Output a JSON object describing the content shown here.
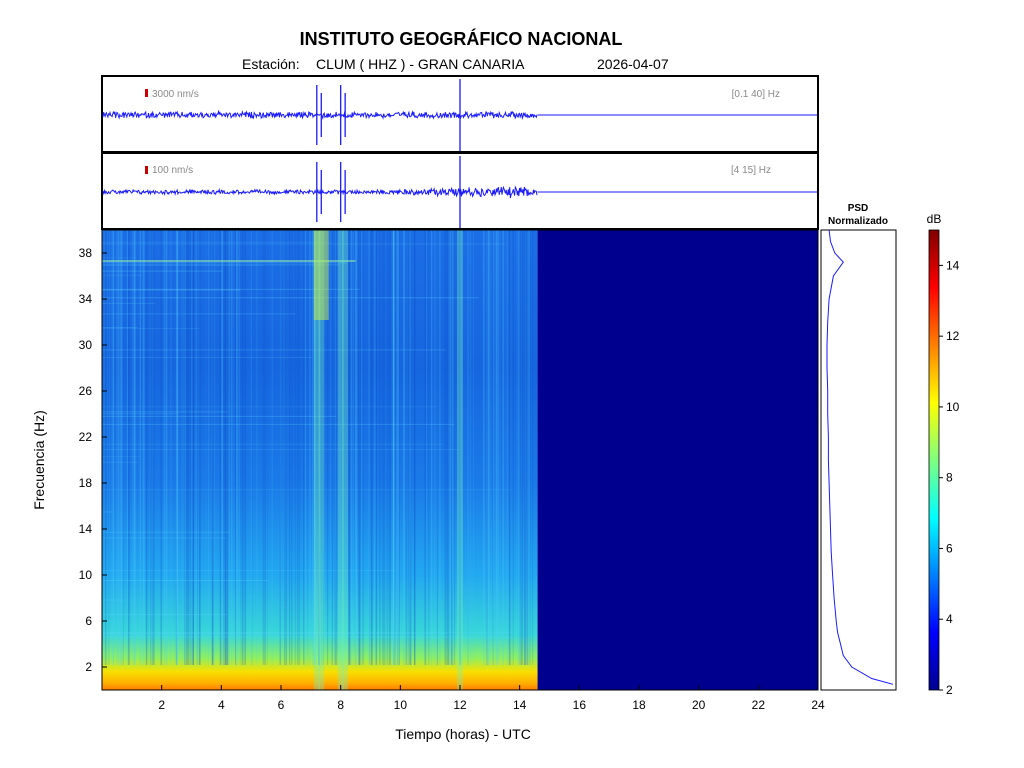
{
  "header": {
    "title": "INSTITUTO GEOGRÁFICO NACIONAL",
    "station_prefix": "Estación:",
    "station": "CLUM ( HHZ ) - GRAN CANARIA",
    "date": "2026-04-07"
  },
  "trace1": {
    "scale_label": "3000 nm/s",
    "band_label": "[0.1 40] Hz"
  },
  "trace2": {
    "scale_label": "100 nm/s",
    "band_label": "[4 15] Hz"
  },
  "psd": {
    "title_line1": "PSD",
    "title_line2": "Normalizado"
  },
  "colorbar": {
    "unit": "dB",
    "min": 2,
    "max": 15,
    "ticks": [
      "2",
      "4",
      "6",
      "8",
      "10",
      "12",
      "14"
    ]
  },
  "colors": {
    "trace": "#1a1aff",
    "nodata": "#00008f",
    "scale_mark": "#cc0000"
  },
  "chart_data": {
    "type": "heatmap",
    "xlabel": "Tiempo (horas) - UTC",
    "ylabel": "Frecuencia  (Hz)",
    "xlim": [
      0,
      24
    ],
    "ylim": [
      0,
      40
    ],
    "x_ticks": [
      "2",
      "4",
      "6",
      "8",
      "10",
      "12",
      "14",
      "16",
      "18",
      "20",
      "22",
      "24"
    ],
    "y_ticks": [
      "2",
      "6",
      "10",
      "14",
      "18",
      "22",
      "26",
      "30",
      "34",
      "38"
    ],
    "data_end_hour": 14.6,
    "event_hours": [
      7.2,
      7.35,
      8.0,
      8.15,
      12.0
    ],
    "psd_profile": {
      "freq": [
        0.5,
        1,
        2,
        3,
        4,
        5,
        6,
        8,
        10,
        12,
        14,
        16,
        18,
        20,
        22,
        24,
        26,
        28,
        30,
        32,
        34,
        36,
        37.2,
        38,
        39,
        40
      ],
      "value": [
        1.0,
        0.7,
        0.42,
        0.3,
        0.26,
        0.22,
        0.2,
        0.17,
        0.15,
        0.13,
        0.12,
        0.11,
        0.1,
        0.09,
        0.09,
        0.08,
        0.08,
        0.07,
        0.07,
        0.08,
        0.1,
        0.16,
        0.3,
        0.18,
        0.12,
        0.1
      ]
    }
  }
}
